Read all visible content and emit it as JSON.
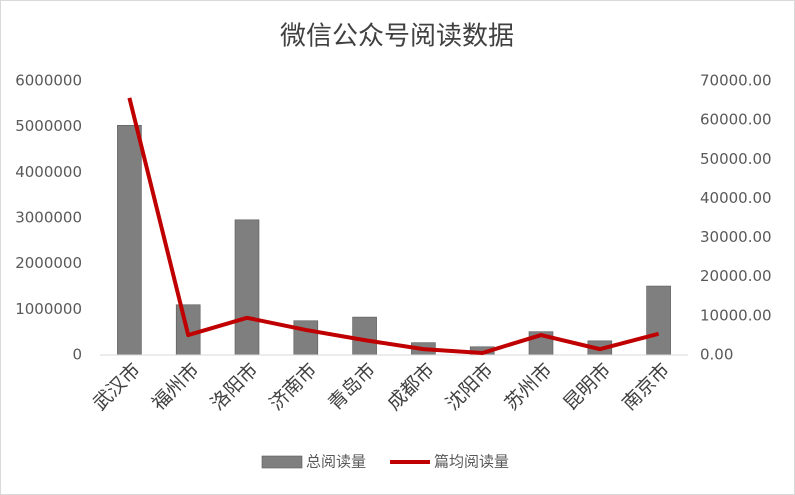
{
  "chart_data": {
    "type": "combo",
    "title": "微信公众号阅读数据",
    "categories": [
      "武汉市",
      "福州市",
      "洛阳市",
      "济南市",
      "青岛市",
      "成都市",
      "沈阳市",
      "苏州市",
      "昆明市",
      "南京市"
    ],
    "series": [
      {
        "name": "总阅读量",
        "type": "bar",
        "color": "#7f7f7f",
        "values": [
          5030000,
          1100000,
          2960000,
          750000,
          830000,
          270000,
          180000,
          510000,
          310000,
          1510000
        ]
      },
      {
        "name": "篇均阅读量",
        "type": "line",
        "axis": "y2",
        "color": "#c00000",
        "values": [
          65700,
          5100,
          9500,
          6400,
          3800,
          1500,
          500,
          5100,
          1500,
          5400
        ]
      }
    ],
    "ylim": [
      0,
      6000000
    ],
    "yticks": [
      0,
      1000000,
      2000000,
      3000000,
      4000000,
      5000000,
      6000000
    ],
    "y2lim": [
      0,
      70000
    ],
    "y2ticks": [
      {
        "value": 0,
        "label": "0.00"
      },
      {
        "value": 10000,
        "label": "10000.00"
      },
      {
        "value": 20000,
        "label": "20000.00"
      },
      {
        "value": 30000,
        "label": "30000.00"
      },
      {
        "value": 40000,
        "label": "40000.00"
      },
      {
        "value": 50000,
        "label": "50000.00"
      },
      {
        "value": 60000,
        "label": "60000.00"
      },
      {
        "value": 70000,
        "label": "70000.00"
      }
    ],
    "legend": "bottom"
  }
}
